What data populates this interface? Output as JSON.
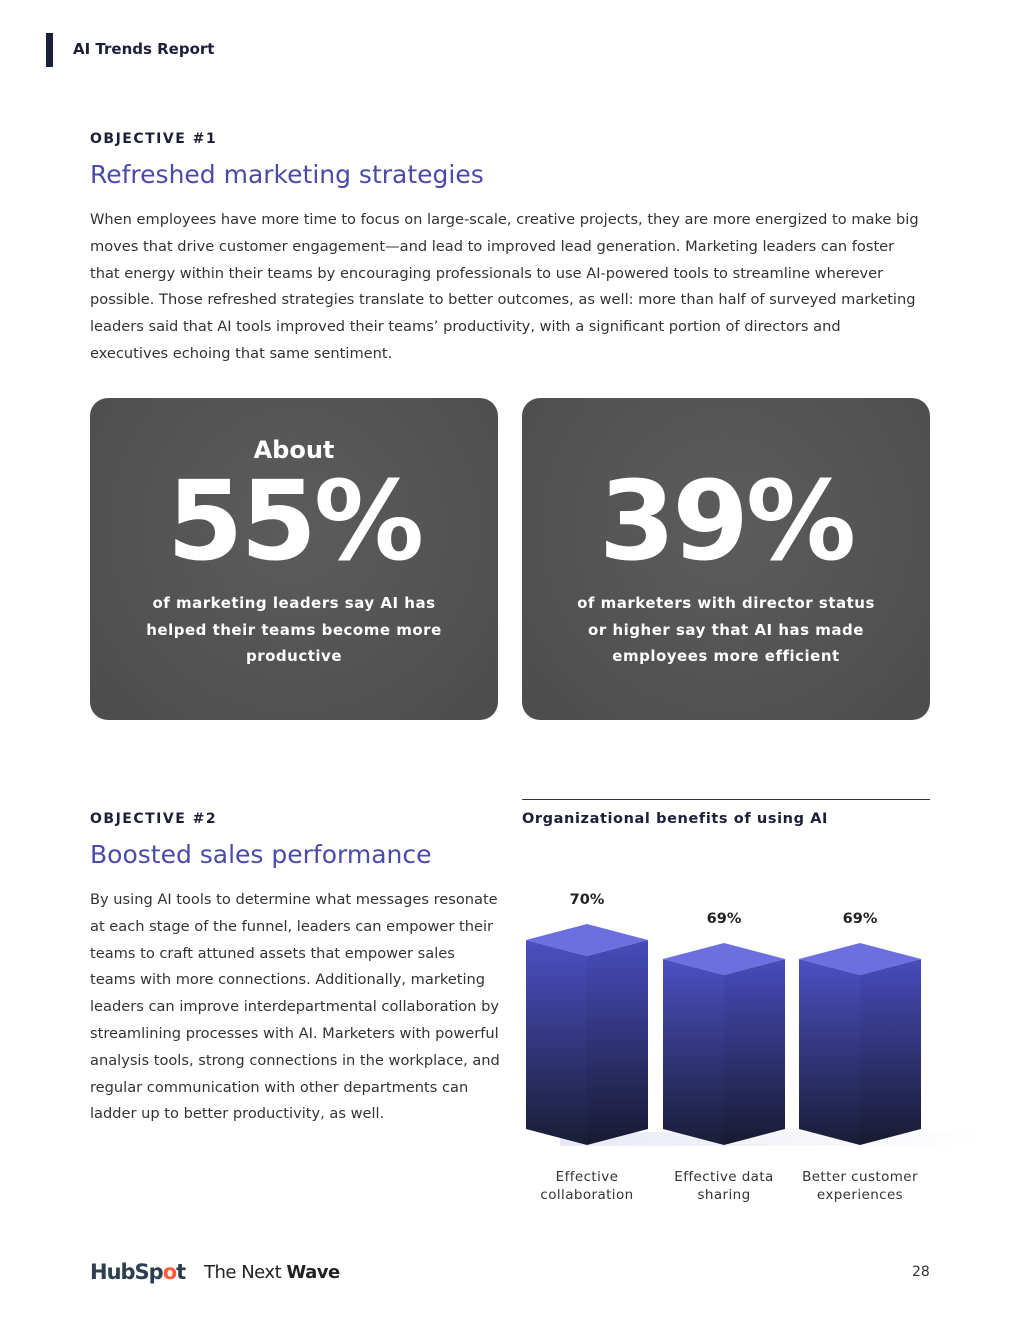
{
  "header": {
    "title": "AI Trends Report"
  },
  "objective1": {
    "label": "OBJECTIVE #1",
    "heading": "Refreshed marketing strategies",
    "body": "When employees have more time to focus on large-scale, creative projects, they are more energized to make big moves that drive customer engagement—and lead to improved lead generation. Marketing leaders can foster that energy within their teams by encouraging professionals to use AI-powered tools to streamline wherever possible. Those refreshed strategies translate to better outcomes, as well: more than half of surveyed marketing leaders said that AI tools improved their teams’ productivity, with a significant portion of directors and executives echoing that same sentiment."
  },
  "stats": [
    {
      "prefix": "About",
      "value": "55%",
      "caption": "of marketing leaders say AI has helped their teams become more productive"
    },
    {
      "prefix": "",
      "value": "39%",
      "caption": "of marketers with director status or higher say that AI has made employees more efficient"
    }
  ],
  "objective2": {
    "label": "OBJECTIVE #2",
    "heading": "Boosted sales performance",
    "body": "By using AI tools to determine what messages resonate at each stage of the funnel, leaders can empower their teams to craft attuned assets that empower sales teams with more connections. Additionally, marketing leaders can improve interdepartmental collaboration by streamlining processes with AI. Marketers with powerful analysis tools, strong connections in the workplace, and regular communication with other departments can ladder up to better productivity, as well."
  },
  "chart_data": {
    "type": "bar",
    "title": "Organizational benefits of using AI",
    "categories": [
      "Effective collaboration",
      "Effective data sharing",
      "Better customer experiences"
    ],
    "values": [
      70,
      69,
      69
    ],
    "data_labels": [
      "70%",
      "69%",
      "69%"
    ],
    "unit": "%",
    "grid": false,
    "colors": {
      "top": "#6b6fe0",
      "face": "#4b50c4",
      "bottom": "#1a1d35"
    }
  },
  "footer": {
    "logo1": "HubSpot",
    "logo2": "The Next Wave",
    "page": "28"
  }
}
